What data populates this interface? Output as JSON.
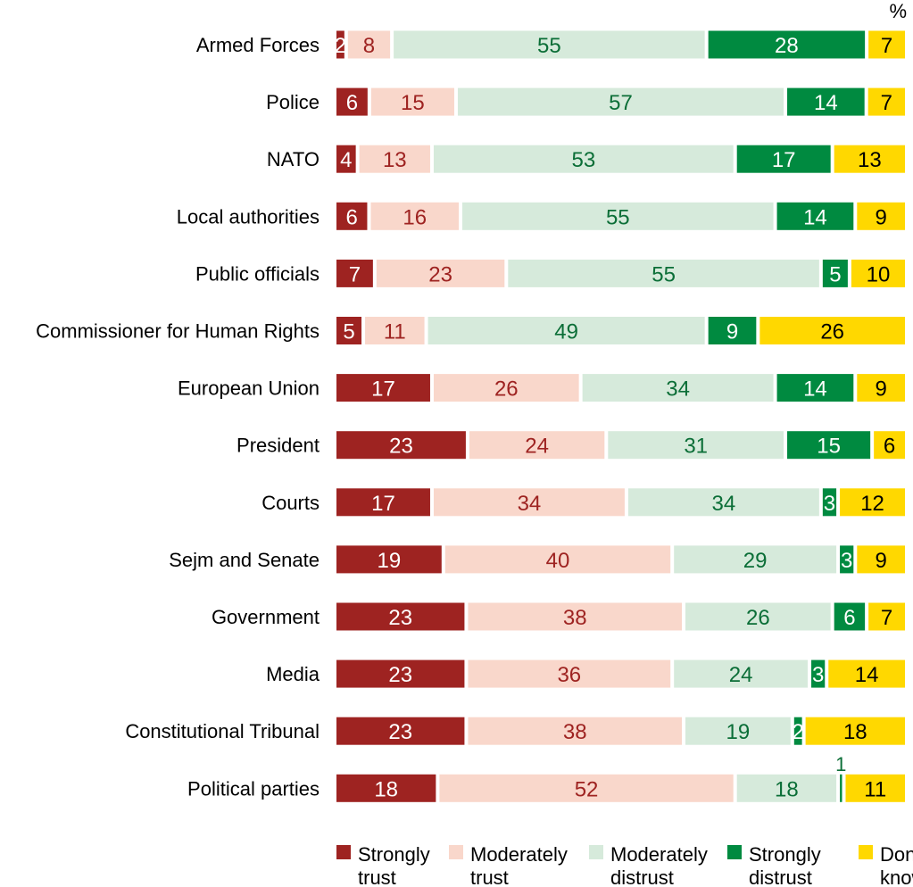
{
  "chart_data": {
    "type": "bar",
    "orientation": "horizontal",
    "stacked": true,
    "unit_label": "%",
    "categories": [
      "Armed Forces",
      "Police",
      "NATO",
      "Local authorities",
      "Public officials",
      "Commissioner for Human Rights",
      "European Union",
      "President",
      "Courts",
      "Sejm and Senate",
      "Government",
      "Media",
      "Constitutional Tribunal",
      "Political parties"
    ],
    "series": [
      {
        "name": "Strongly trust",
        "color": "#9e2321",
        "label_color": "#ffffff",
        "values": [
          2,
          6,
          4,
          6,
          7,
          5,
          17,
          23,
          17,
          19,
          23,
          23,
          23,
          18
        ]
      },
      {
        "name": "Moderately trust",
        "color": "#f9d7cb",
        "label_color": "#9e2321",
        "values": [
          8,
          15,
          13,
          16,
          23,
          11,
          26,
          24,
          34,
          40,
          38,
          36,
          38,
          52
        ]
      },
      {
        "name": "Moderately distrust",
        "color": "#d6eadb",
        "label_color": "#0b6e37",
        "values": [
          55,
          57,
          53,
          55,
          55,
          49,
          34,
          31,
          34,
          29,
          26,
          24,
          19,
          18
        ]
      },
      {
        "name": "Strongly distrust",
        "color": "#008a40",
        "label_color": "#ffffff",
        "values": [
          28,
          14,
          17,
          14,
          5,
          9,
          14,
          15,
          3,
          3,
          6,
          3,
          2,
          1
        ]
      },
      {
        "name": "Don't know",
        "color": "#ffd800",
        "label_color": "#000000",
        "values": [
          7,
          7,
          13,
          9,
          10,
          26,
          9,
          6,
          12,
          9,
          7,
          14,
          18,
          11
        ]
      }
    ],
    "legend": {
      "placement": "bottom",
      "entries": [
        [
          "Strongly",
          "trust"
        ],
        [
          "Moderately",
          "trust"
        ],
        [
          "Moderately",
          "distrust"
        ],
        [
          "Strongly",
          "distrust"
        ],
        [
          "Don't",
          "know"
        ]
      ]
    },
    "grid": false
  }
}
